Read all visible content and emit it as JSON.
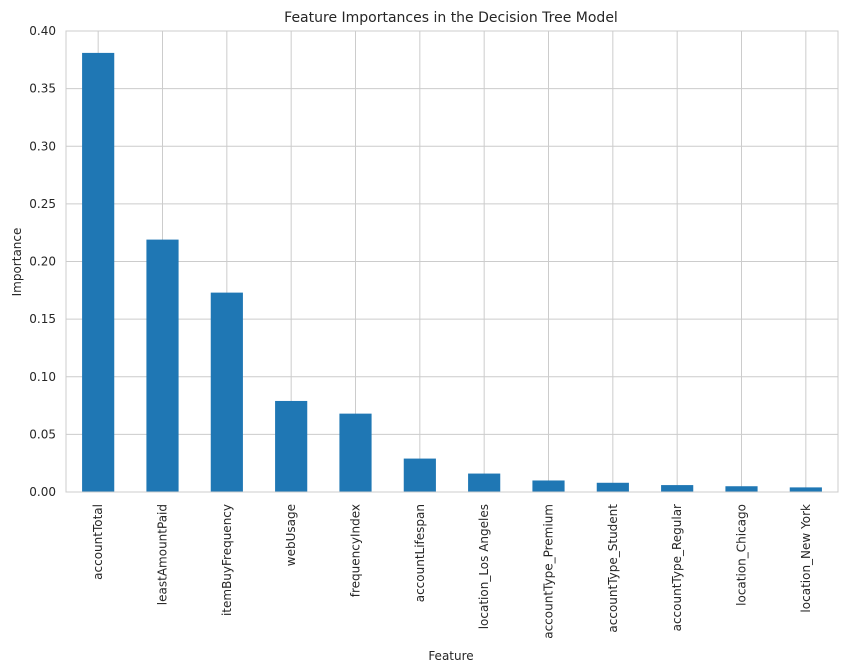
{
  "chart_data": {
    "type": "bar",
    "title": "Feature Importances in the Decision Tree Model",
    "xlabel": "Feature",
    "ylabel": "Importance",
    "categories": [
      "accountTotal",
      "leastAmountPaid",
      "itemBuyFrequency",
      "webUsage",
      "frequencyIndex",
      "accountLifespan",
      "location_Los Angeles",
      "accountType_Premium",
      "accountType_Student",
      "accountType_Regular",
      "location_Chicago",
      "location_New York"
    ],
    "values": [
      0.381,
      0.219,
      0.173,
      0.079,
      0.068,
      0.029,
      0.016,
      0.01,
      0.008,
      0.006,
      0.005,
      0.004
    ],
    "ylim": [
      0,
      0.4
    ],
    "yticks": [
      "0.00",
      "0.05",
      "0.10",
      "0.15",
      "0.20",
      "0.25",
      "0.30",
      "0.35",
      "0.40"
    ],
    "grid": true,
    "bar_color": "#1f77b4",
    "grid_color": "#cccccc"
  }
}
